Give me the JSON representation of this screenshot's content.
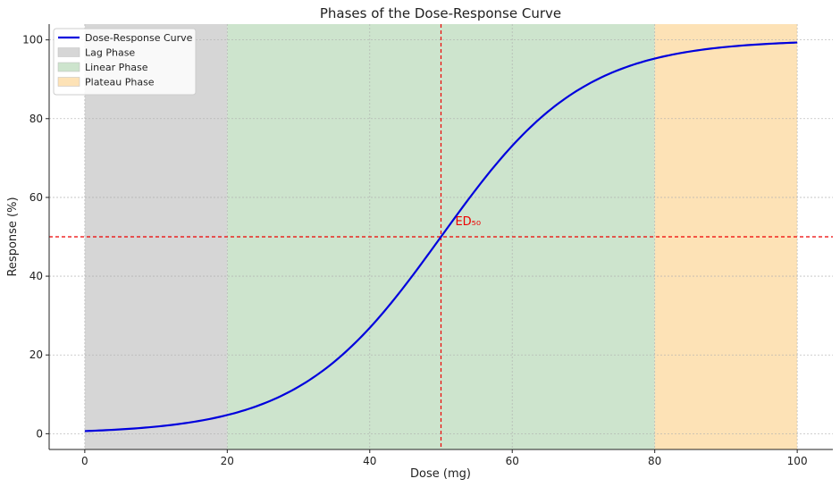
{
  "chart_data": {
    "type": "line",
    "title": "Phases of the Dose-Response Curve",
    "xlabel": "Dose (mg)",
    "ylabel": "Response (%)",
    "xlim": [
      -5,
      105
    ],
    "ylim": [
      -4,
      104
    ],
    "xticks": [
      0,
      20,
      40,
      60,
      80,
      100
    ],
    "yticks": [
      0,
      20,
      40,
      60,
      80,
      100
    ],
    "grid": true,
    "legend_position": "top-left",
    "series": [
      {
        "name": "Dose-Response Curve",
        "color": "#0000dd",
        "model": "logistic",
        "midpoint": 50,
        "slope": 0.1,
        "x_range": [
          0,
          100
        ]
      }
    ],
    "phases": [
      {
        "name": "Lag Phase",
        "x_start": 0,
        "x_end": 20,
        "color": "#d6d6d6"
      },
      {
        "name": "Linear Phase",
        "x_start": 20,
        "x_end": 80,
        "color": "#cde4cd"
      },
      {
        "name": "Plateau Phase",
        "x_start": 80,
        "x_end": 100,
        "color": "#fde2b6"
      }
    ],
    "reference_lines": [
      {
        "orientation": "vertical",
        "value": 50,
        "color": "#ee0000"
      },
      {
        "orientation": "horizontal",
        "value": 50,
        "color": "#ee0000"
      }
    ],
    "annotations": [
      {
        "text": "ED₅₀",
        "x": 52,
        "y": 53,
        "color": "#ee0000"
      }
    ]
  }
}
